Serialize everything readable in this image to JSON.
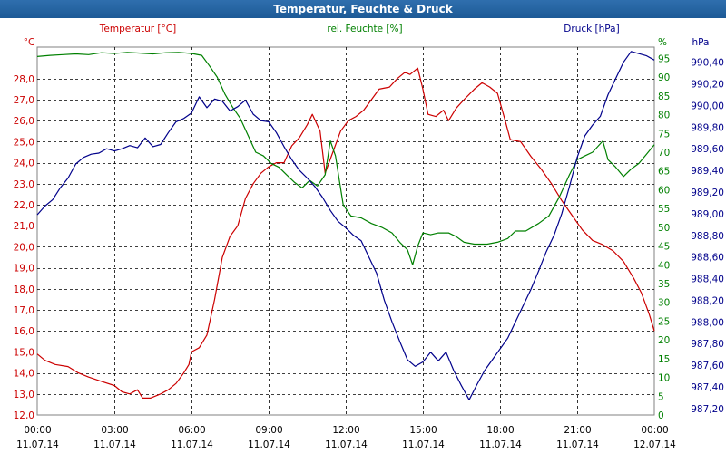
{
  "title": "Temperatur, Feuchte & Druck",
  "colors": {
    "temperature": "#cc0000",
    "humidity": "#008000",
    "pressure": "#00008b",
    "grid": "#000000",
    "titlebar": "#1d5a96"
  },
  "chart_data": {
    "type": "line",
    "title": "Temperatur, Feuchte & Druck",
    "x": {
      "unit": "hours since 11.07.14 00:00",
      "range": [
        0,
        24
      ],
      "ticks": [
        {
          "time": "00:00",
          "date": "11.07.14"
        },
        {
          "time": "03:00",
          "date": "11.07.14"
        },
        {
          "time": "06:00",
          "date": "11.07.14"
        },
        {
          "time": "09:00",
          "date": "11.07.14"
        },
        {
          "time": "12:00",
          "date": "11.07.14"
        },
        {
          "time": "15:00",
          "date": "11.07.14"
        },
        {
          "time": "18:00",
          "date": "11.07.14"
        },
        {
          "time": "21:00",
          "date": "11.07.14"
        },
        {
          "time": "00:00",
          "date": "12.07.14"
        }
      ]
    },
    "axes": {
      "temperature": {
        "label": "Temperatur [°C]",
        "unit": "°C",
        "range": [
          12,
          29.5
        ],
        "ticks": [
          "12,0",
          "13,0",
          "14,0",
          "15,0",
          "16,0",
          "17,0",
          "18,0",
          "19,0",
          "20,0",
          "21,0",
          "22,0",
          "23,0",
          "24,0",
          "25,0",
          "26,0",
          "27,0",
          "28,0"
        ]
      },
      "humidity": {
        "label": "rel. Feuchte [%]",
        "unit": "%",
        "range": [
          0,
          98
        ],
        "ticks": [
          "0",
          "5",
          "10",
          "15",
          "20",
          "25",
          "30",
          "35",
          "40",
          "45",
          "50",
          "55",
          "60",
          "65",
          "70",
          "75",
          "80",
          "85",
          "90",
          "95"
        ]
      },
      "pressure": {
        "label": "Druck [hPa]",
        "unit": "hPa",
        "range": [
          987.14,
          990.54
        ],
        "ticks": [
          "987,20",
          "987,40",
          "987,60",
          "987,80",
          "988,00",
          "988,20",
          "988,40",
          "988,60",
          "988,80",
          "989,00",
          "989,20",
          "989,40",
          "989,60",
          "989,80",
          "990,00",
          "990,20",
          "990,40"
        ]
      }
    },
    "series": [
      {
        "name": "Temperatur [°C]",
        "axis": "temperature",
        "points": [
          [
            0,
            14.9
          ],
          [
            0.3,
            14.6
          ],
          [
            0.7,
            14.4
          ],
          [
            1.2,
            14.3
          ],
          [
            1.6,
            14.0
          ],
          [
            2.0,
            13.8
          ],
          [
            2.5,
            13.6
          ],
          [
            3.0,
            13.4
          ],
          [
            3.3,
            13.1
          ],
          [
            3.6,
            13.0
          ],
          [
            3.9,
            13.2
          ],
          [
            4.1,
            12.8
          ],
          [
            4.4,
            12.8
          ],
          [
            4.8,
            13.0
          ],
          [
            5.1,
            13.2
          ],
          [
            5.4,
            13.5
          ],
          [
            5.7,
            14.0
          ],
          [
            5.9,
            14.4
          ],
          [
            6.0,
            15.0
          ],
          [
            6.3,
            15.2
          ],
          [
            6.6,
            15.8
          ],
          [
            6.9,
            17.5
          ],
          [
            7.2,
            19.5
          ],
          [
            7.5,
            20.5
          ],
          [
            7.8,
            21.0
          ],
          [
            8.1,
            22.3
          ],
          [
            8.4,
            23.0
          ],
          [
            8.7,
            23.5
          ],
          [
            9.0,
            23.8
          ],
          [
            9.3,
            24.0
          ],
          [
            9.6,
            24.0
          ],
          [
            9.9,
            24.8
          ],
          [
            10.2,
            25.2
          ],
          [
            10.5,
            25.8
          ],
          [
            10.7,
            26.3
          ],
          [
            11.0,
            25.5
          ],
          [
            11.2,
            23.5
          ],
          [
            11.5,
            24.5
          ],
          [
            11.8,
            25.5
          ],
          [
            12.1,
            26.0
          ],
          [
            12.4,
            26.2
          ],
          [
            12.7,
            26.5
          ],
          [
            13.0,
            27.0
          ],
          [
            13.3,
            27.5
          ],
          [
            13.7,
            27.6
          ],
          [
            14.0,
            28.0
          ],
          [
            14.3,
            28.3
          ],
          [
            14.5,
            28.2
          ],
          [
            14.8,
            28.5
          ],
          [
            15.0,
            27.5
          ],
          [
            15.2,
            26.3
          ],
          [
            15.5,
            26.2
          ],
          [
            15.8,
            26.5
          ],
          [
            16.0,
            26.0
          ],
          [
            16.3,
            26.6
          ],
          [
            16.6,
            27.0
          ],
          [
            17.0,
            27.5
          ],
          [
            17.3,
            27.8
          ],
          [
            17.6,
            27.6
          ],
          [
            17.9,
            27.3
          ],
          [
            18.2,
            26.0
          ],
          [
            18.4,
            25.1
          ],
          [
            18.8,
            25.0
          ],
          [
            19.2,
            24.3
          ],
          [
            19.6,
            23.7
          ],
          [
            20.0,
            23.0
          ],
          [
            20.4,
            22.2
          ],
          [
            20.8,
            21.5
          ],
          [
            21.2,
            20.8
          ],
          [
            21.6,
            20.3
          ],
          [
            22.0,
            20.1
          ],
          [
            22.4,
            19.8
          ],
          [
            22.8,
            19.3
          ],
          [
            23.2,
            18.5
          ],
          [
            23.5,
            17.8
          ],
          [
            23.8,
            16.8
          ],
          [
            24.0,
            16.0
          ]
        ]
      },
      {
        "name": "rel. Feuchte [%]",
        "axis": "humidity",
        "points": [
          [
            0,
            95.5
          ],
          [
            0.5,
            95.8
          ],
          [
            1.0,
            96.0
          ],
          [
            1.5,
            96.2
          ],
          [
            2.0,
            96.0
          ],
          [
            2.5,
            96.5
          ],
          [
            3.0,
            96.3
          ],
          [
            3.5,
            96.6
          ],
          [
            4.0,
            96.4
          ],
          [
            4.5,
            96.2
          ],
          [
            5.0,
            96.5
          ],
          [
            5.5,
            96.6
          ],
          [
            6.0,
            96.3
          ],
          [
            6.4,
            95.8
          ],
          [
            6.7,
            93.0
          ],
          [
            7.0,
            90.0
          ],
          [
            7.3,
            85.5
          ],
          [
            7.6,
            82.0
          ],
          [
            7.9,
            79.0
          ],
          [
            8.2,
            74.5
          ],
          [
            8.5,
            70.0
          ],
          [
            8.8,
            69.0
          ],
          [
            9.1,
            67.0
          ],
          [
            9.4,
            66.0
          ],
          [
            9.7,
            64.0
          ],
          [
            10.0,
            62.0
          ],
          [
            10.3,
            60.5
          ],
          [
            10.6,
            62.5
          ],
          [
            10.9,
            61.0
          ],
          [
            11.2,
            64.0
          ],
          [
            11.4,
            73.0
          ],
          [
            11.6,
            69.0
          ],
          [
            11.9,
            56.0
          ],
          [
            12.2,
            53.0
          ],
          [
            12.6,
            52.5
          ],
          [
            13.0,
            51.0
          ],
          [
            13.4,
            50.0
          ],
          [
            13.8,
            48.5
          ],
          [
            14.1,
            46.0
          ],
          [
            14.4,
            44.0
          ],
          [
            14.6,
            40.0
          ],
          [
            14.8,
            45.0
          ],
          [
            15.0,
            48.5
          ],
          [
            15.3,
            48.0
          ],
          [
            15.6,
            48.5
          ],
          [
            16.0,
            48.5
          ],
          [
            16.3,
            47.5
          ],
          [
            16.6,
            46.0
          ],
          [
            17.0,
            45.5
          ],
          [
            17.5,
            45.5
          ],
          [
            17.9,
            46.0
          ],
          [
            18.3,
            47.0
          ],
          [
            18.6,
            49.0
          ],
          [
            19.0,
            49.0
          ],
          [
            19.5,
            51.0
          ],
          [
            19.9,
            53.0
          ],
          [
            20.3,
            58.0
          ],
          [
            20.7,
            64.0
          ],
          [
            21.0,
            68.0
          ],
          [
            21.3,
            69.0
          ],
          [
            21.6,
            70.0
          ],
          [
            22.0,
            73.0
          ],
          [
            22.2,
            68.0
          ],
          [
            22.5,
            66.0
          ],
          [
            22.8,
            63.5
          ],
          [
            23.1,
            65.5
          ],
          [
            23.4,
            67.0
          ],
          [
            23.7,
            69.5
          ],
          [
            24.0,
            72.0
          ]
        ]
      },
      {
        "name": "Druck [hPa]",
        "axis": "pressure",
        "points": [
          [
            0,
            988.99
          ],
          [
            0.3,
            989.07
          ],
          [
            0.6,
            989.13
          ],
          [
            0.9,
            989.24
          ],
          [
            1.2,
            989.33
          ],
          [
            1.5,
            989.46
          ],
          [
            1.8,
            989.52
          ],
          [
            2.1,
            989.55
          ],
          [
            2.4,
            989.56
          ],
          [
            2.7,
            989.6
          ],
          [
            3.0,
            989.58
          ],
          [
            3.3,
            989.6
          ],
          [
            3.6,
            989.63
          ],
          [
            3.9,
            989.61
          ],
          [
            4.2,
            989.7
          ],
          [
            4.5,
            989.62
          ],
          [
            4.8,
            989.64
          ],
          [
            5.1,
            989.75
          ],
          [
            5.4,
            989.85
          ],
          [
            5.7,
            989.88
          ],
          [
            6.0,
            989.93
          ],
          [
            6.3,
            990.08
          ],
          [
            6.6,
            989.98
          ],
          [
            6.9,
            990.06
          ],
          [
            7.2,
            990.04
          ],
          [
            7.5,
            989.95
          ],
          [
            7.8,
            989.99
          ],
          [
            8.1,
            990.05
          ],
          [
            8.4,
            989.92
          ],
          [
            8.7,
            989.86
          ],
          [
            9.0,
            989.85
          ],
          [
            9.3,
            989.75
          ],
          [
            9.6,
            989.62
          ],
          [
            9.9,
            989.5
          ],
          [
            10.2,
            989.4
          ],
          [
            10.5,
            989.33
          ],
          [
            10.8,
            989.25
          ],
          [
            11.1,
            989.15
          ],
          [
            11.4,
            989.03
          ],
          [
            11.7,
            988.93
          ],
          [
            12.0,
            988.87
          ],
          [
            12.3,
            988.8
          ],
          [
            12.6,
            988.75
          ],
          [
            12.9,
            988.6
          ],
          [
            13.2,
            988.45
          ],
          [
            13.5,
            988.2
          ],
          [
            13.8,
            988.0
          ],
          [
            14.1,
            987.82
          ],
          [
            14.4,
            987.65
          ],
          [
            14.7,
            987.59
          ],
          [
            15.0,
            987.63
          ],
          [
            15.3,
            987.72
          ],
          [
            15.6,
            987.64
          ],
          [
            15.9,
            987.72
          ],
          [
            16.2,
            987.55
          ],
          [
            16.5,
            987.41
          ],
          [
            16.8,
            987.28
          ],
          [
            17.1,
            987.42
          ],
          [
            17.4,
            987.55
          ],
          [
            17.7,
            987.65
          ],
          [
            18.0,
            987.75
          ],
          [
            18.3,
            987.85
          ],
          [
            18.6,
            988.0
          ],
          [
            18.9,
            988.15
          ],
          [
            19.2,
            988.3
          ],
          [
            19.5,
            988.47
          ],
          [
            19.8,
            988.65
          ],
          [
            20.1,
            988.8
          ],
          [
            20.4,
            989.0
          ],
          [
            20.7,
            989.25
          ],
          [
            21.0,
            989.52
          ],
          [
            21.3,
            989.72
          ],
          [
            21.6,
            989.82
          ],
          [
            21.9,
            989.9
          ],
          [
            22.2,
            990.1
          ],
          [
            22.5,
            990.25
          ],
          [
            22.8,
            990.4
          ],
          [
            23.1,
            990.5
          ],
          [
            23.4,
            990.48
          ],
          [
            23.7,
            990.46
          ],
          [
            24.0,
            990.42
          ]
        ]
      }
    ]
  }
}
